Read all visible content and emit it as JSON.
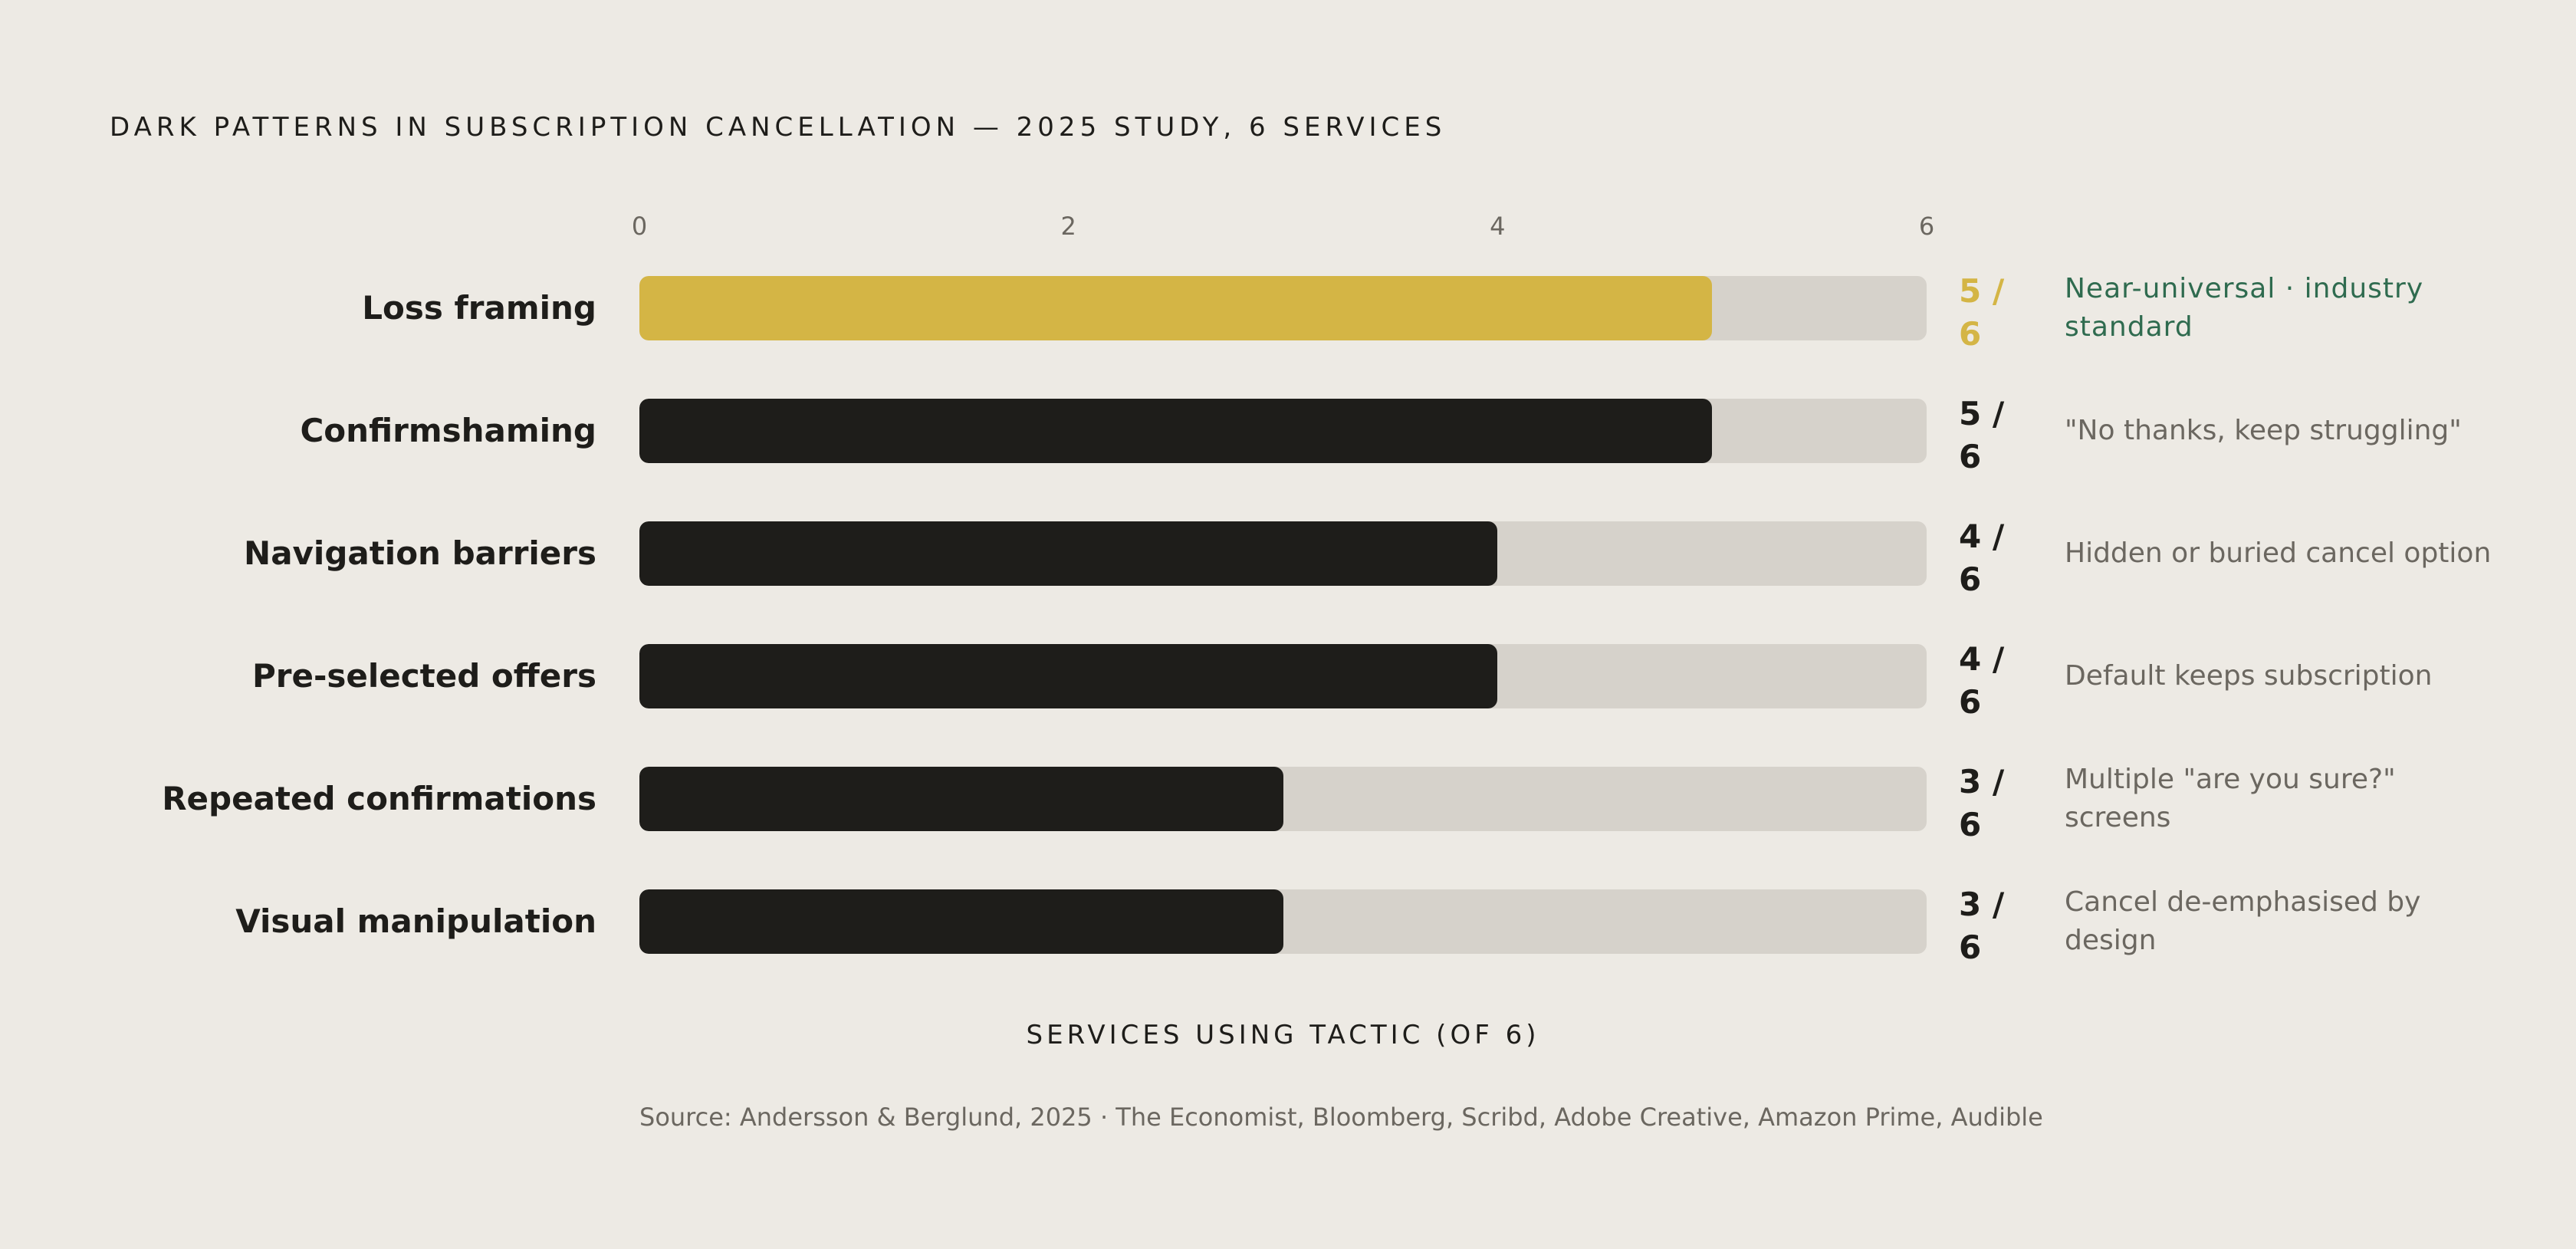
{
  "chart_data": {
    "type": "bar",
    "orientation": "horizontal",
    "title": "DARK PATTERNS IN SUBSCRIPTION CANCELLATION — 2025 STUDY, 6 SERVICES",
    "xlabel": "SERVICES USING TACTIC (OF 6)",
    "xlim": [
      0,
      6
    ],
    "xticks": [
      "0",
      "2",
      "4",
      "6"
    ],
    "categories": [
      "Loss framing",
      "Confirmshaming",
      "Navigation barriers",
      "Pre-selected offers",
      "Repeated confirmations",
      "Visual manipulation"
    ],
    "values": [
      5,
      5,
      4,
      4,
      3,
      3
    ],
    "value_labels": [
      "5 / 6",
      "5 / 6",
      "4 / 6",
      "4 / 6",
      "3 / 6",
      "3 / 6"
    ],
    "annotations": [
      "Near-universal · industry standard",
      "\"No thanks, keep struggling\"",
      "Hidden or buried cancel option",
      "Default keeps subscription",
      "Multiple \"are you sure?\" screens",
      "Cancel de-emphasised by design"
    ],
    "highlighted_index": 0,
    "source": "Source: Andersson & Berglund, 2025 · The Economist, Bloomberg, Scribd, Adobe Creative, Amazon Prime, Audible",
    "grid": false,
    "legend": "none"
  },
  "colors": {
    "background": "#edeae4",
    "bar": "#1e1d1a",
    "highlight": "#d4b545",
    "track": "#d6d2cb",
    "highlight_note": "#2f6b4f",
    "muted_text": "#6b6760"
  }
}
